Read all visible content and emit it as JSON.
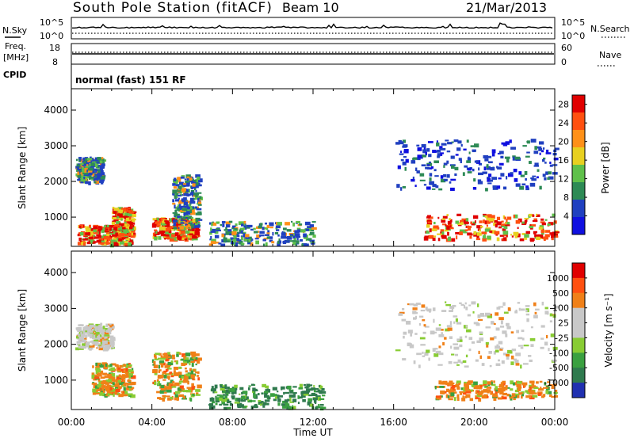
{
  "header": {
    "station": "South Pole Station (fitACF)",
    "beam": "Beam 10",
    "date": "21/Mar/2013"
  },
  "top_panels": {
    "nsky_label": "N.Sky",
    "nsearch_label": "N.Search",
    "nsky_ticks": [
      "10^5",
      "10^0"
    ],
    "nsearch_ticks": [
      "10^5",
      "10^0"
    ],
    "freq_label_1": "Freq.",
    "freq_label_2": "[MHz]",
    "freq_ticks": [
      "18",
      "8"
    ],
    "nave_label": "Nave",
    "nave_ticks": [
      "60",
      "0"
    ],
    "cpid_label": "CPID",
    "cpid_value": "normal (fast) 151 RF"
  },
  "colors": {
    "power_scale": [
      "#1010e0",
      "#2040c0",
      "#2d8a55",
      "#5fc04a",
      "#e8d020",
      "#ff9018",
      "#ff5010",
      "#e00000"
    ],
    "velocity_scale": [
      "#2030b0",
      "#2f7a4e",
      "#3aa040",
      "#88cc33",
      "#c8c8c8",
      "#c8c8c8",
      "#f08018",
      "#ff5010",
      "#e00000"
    ]
  },
  "chart_data": [
    {
      "type": "heatmap",
      "title": "",
      "xlabel": "",
      "ylabel": "Slant Range [km]",
      "ylim": [
        180,
        4600
      ],
      "yticks": [
        1000,
        2000,
        3000,
        4000
      ],
      "x_ticks": [
        "00:00",
        "04:00",
        "08:00",
        "12:00",
        "16:00",
        "20:00",
        "00:00"
      ],
      "xlim_hours": [
        0,
        24
      ],
      "colorbar": {
        "label": "Power [dB]",
        "ticks": [
          "4",
          "8",
          "12",
          "16",
          "20",
          "24",
          "28"
        ],
        "range": [
          0,
          30
        ]
      },
      "echo_regions": [
        {
          "t": [
            0.3,
            3.0
          ],
          "r": [
            250,
            800
          ],
          "level": "high"
        },
        {
          "t": [
            2.0,
            3.0
          ],
          "r": [
            500,
            1300
          ],
          "level": "high"
        },
        {
          "t": [
            4.0,
            6.2
          ],
          "r": [
            400,
            1000
          ],
          "level": "high"
        },
        {
          "t": [
            5.0,
            6.3
          ],
          "r": [
            700,
            2200
          ],
          "level": "medium"
        },
        {
          "t": [
            0.2,
            1.5
          ],
          "r": [
            2000,
            2700
          ],
          "level": "medium"
        },
        {
          "t": [
            6.8,
            12.0
          ],
          "r": [
            250,
            900
          ],
          "level": "medium"
        },
        {
          "t": [
            16.0,
            24.0
          ],
          "r": [
            1800,
            3200
          ],
          "level": "low"
        },
        {
          "t": [
            17.5,
            24.0
          ],
          "r": [
            400,
            1100
          ],
          "level": "high"
        }
      ]
    },
    {
      "type": "heatmap",
      "title": "",
      "xlabel": "Time UT",
      "ylabel": "Slant Range [km]",
      "ylim": [
        180,
        4600
      ],
      "yticks": [
        1000,
        2000,
        3000,
        4000
      ],
      "x_ticks": [
        "00:00",
        "04:00",
        "08:00",
        "12:00",
        "16:00",
        "20:00",
        "00:00"
      ],
      "xlim_hours": [
        0,
        24
      ],
      "colorbar": {
        "label": "Velocity [m s⁻¹]",
        "ticks": [
          "1000",
          "500",
          "100",
          "25",
          "-25",
          "-100",
          "-500",
          "-1000"
        ],
        "range": [
          -1000,
          1000
        ]
      },
      "echo_regions": [
        {
          "t": [
            1.0,
            3.0
          ],
          "r": [
            600,
            1500
          ],
          "level": "toward"
        },
        {
          "t": [
            4.0,
            6.3
          ],
          "r": [
            500,
            1800
          ],
          "level": "toward"
        },
        {
          "t": [
            6.8,
            12.5
          ],
          "r": [
            250,
            900
          ],
          "level": "away"
        },
        {
          "t": [
            0.2,
            2.0
          ],
          "r": [
            1900,
            2600
          ],
          "level": "zero"
        },
        {
          "t": [
            16.0,
            24.0
          ],
          "r": [
            1400,
            3200
          ],
          "level": "zero"
        },
        {
          "t": [
            18.0,
            24.0
          ],
          "r": [
            500,
            1000
          ],
          "level": "toward"
        }
      ]
    }
  ]
}
